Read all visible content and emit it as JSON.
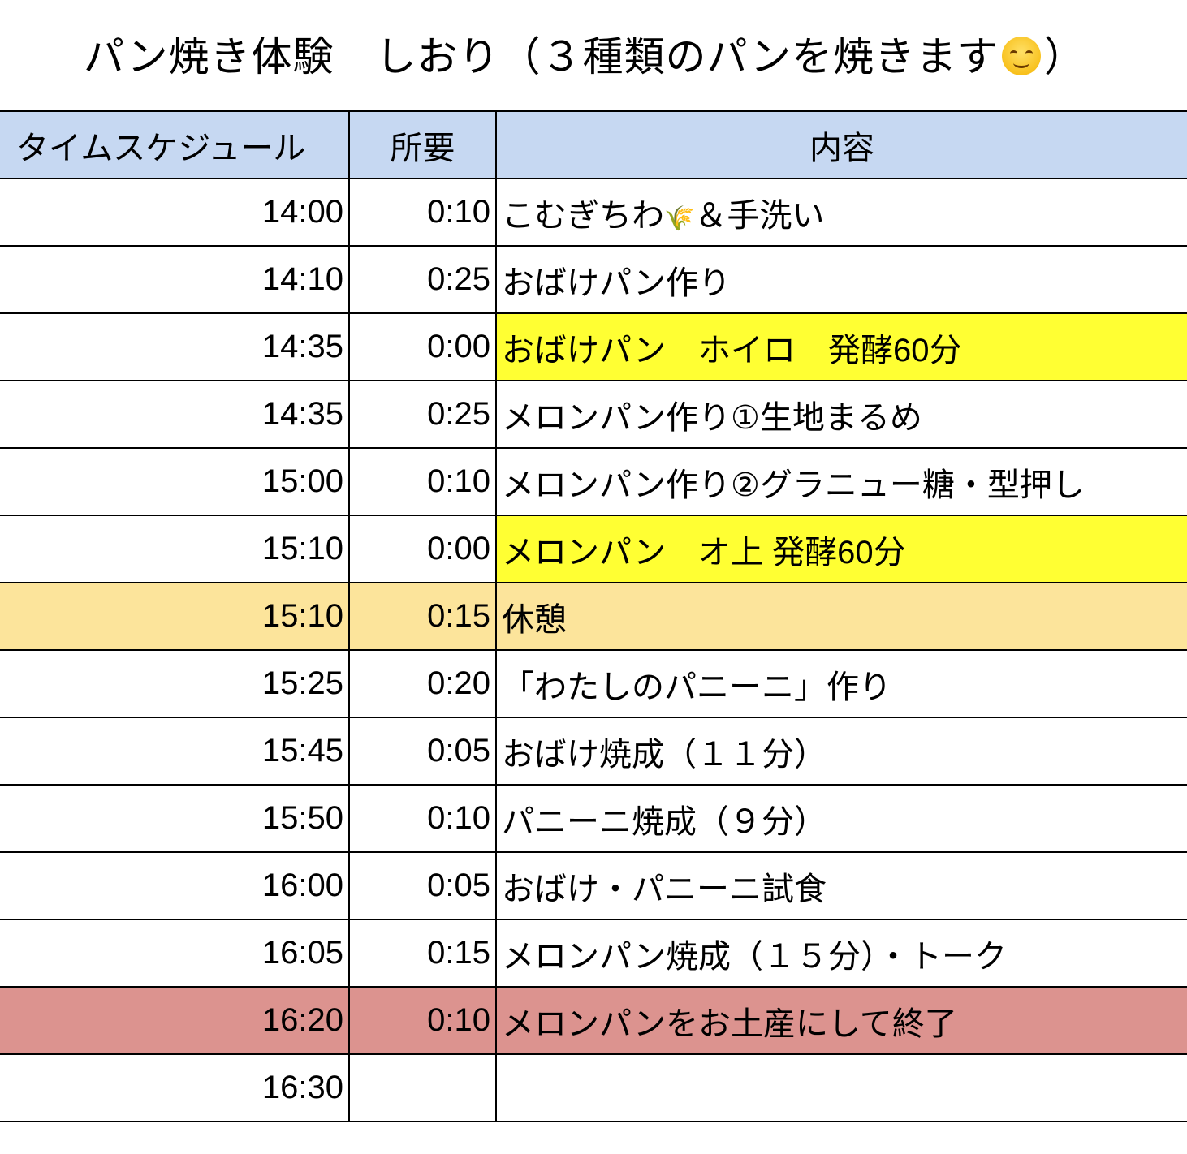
{
  "title": "パン焼き体験　しおり（３種類のパンを焼きます",
  "title_end": "）",
  "title_emoji": "smiling-face-icon",
  "colors": {
    "header": "#c6d8f2",
    "yellow": "#ffff33",
    "orange": "#fce49b",
    "red": "#dc938f"
  },
  "headers": [
    "タイムスケジュール",
    "所要",
    "内容"
  ],
  "rows": [
    {
      "time": "14:00",
      "dur": "0:10",
      "content": "こむぎちわ",
      "content2": "＆手洗い",
      "icon": "rice-sheaf-icon"
    },
    {
      "time": "14:10",
      "dur": "0:25",
      "content": "おばけパン作り"
    },
    {
      "time": "14:35",
      "dur": "0:00",
      "content": "おばけパン　ホイロ　発酵60分",
      "hl": "yellow"
    },
    {
      "time": "14:35",
      "dur": "0:25",
      "content": "メロンパン作り①生地まるめ"
    },
    {
      "time": "15:00",
      "dur": "0:10",
      "content": "メロンパン作り②グラニュー糖・型押し"
    },
    {
      "time": "15:10",
      "dur": "0:00",
      "content": "メロンパン　オ上 発酵60分",
      "hl": "yellow"
    },
    {
      "time": "15:10",
      "dur": "0:15",
      "content": "休憩",
      "row": "orange"
    },
    {
      "time": "15:25",
      "dur": "0:20",
      "content": "「わたしのパニーニ」作り"
    },
    {
      "time": "15:45",
      "dur": "0:05",
      "content": "おばけ焼成（１１分）"
    },
    {
      "time": "15:50",
      "dur": "0:10",
      "content": "パニーニ焼成（９分）"
    },
    {
      "time": "16:00",
      "dur": "0:05",
      "content": "おばけ・パニーニ試食"
    },
    {
      "time": "16:05",
      "dur": "0:15",
      "content": "メロンパン焼成（１５分）・トーク"
    },
    {
      "time": "16:20",
      "dur": "0:10",
      "content": "メロンパンをお土産にして終了",
      "row": "red"
    },
    {
      "time": "16:30",
      "dur": "",
      "content": ""
    }
  ]
}
